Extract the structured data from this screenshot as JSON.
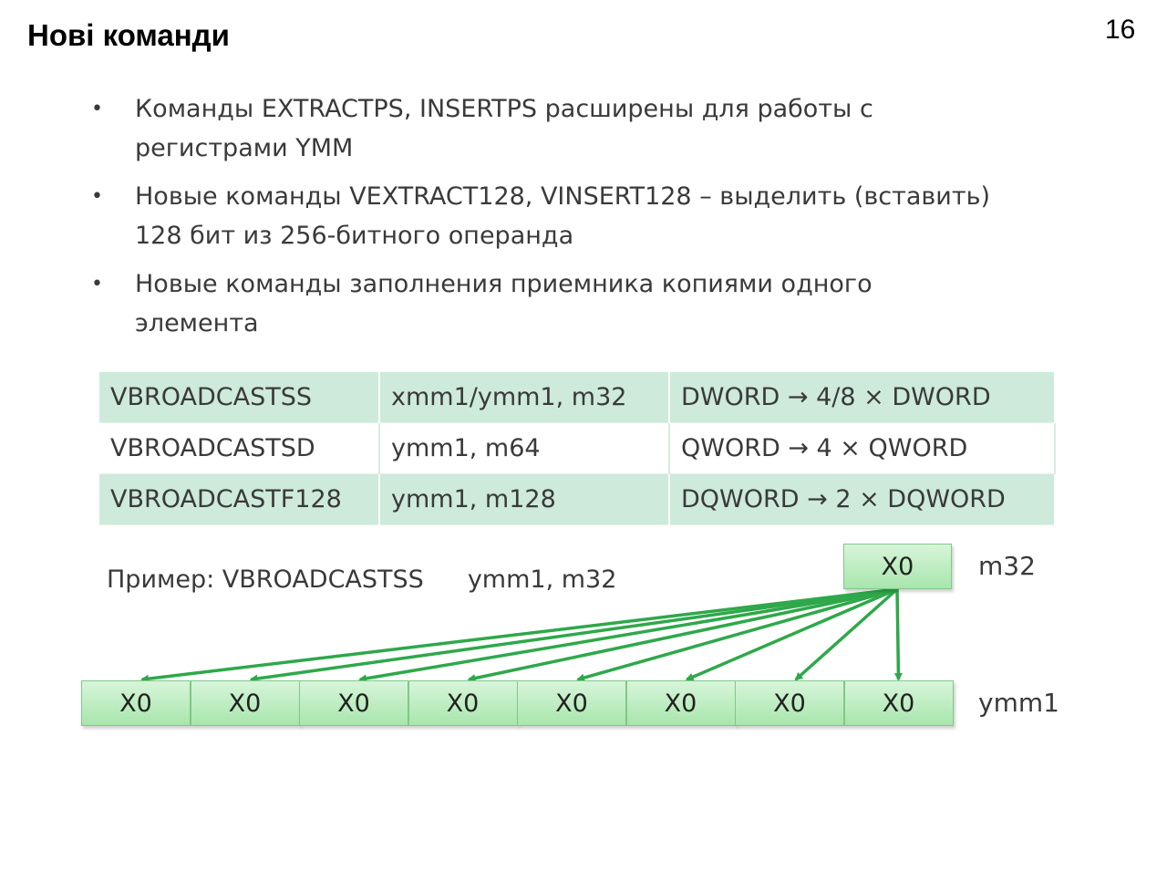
{
  "slide": {
    "title": "Нові команди",
    "page_number": "16"
  },
  "bullets": [
    {
      "marker": "•",
      "text": "Команды EXTRACTPS, INSERTPS расширены для работы с регистрами YMM"
    },
    {
      "marker": "•",
      "text": "Новые команды VEXTRACT128, VINSERT128 – выделить (вставить) 128 бит из 256-битного операнда"
    },
    {
      "marker": "•",
      "text": "Новые команды заполнения приемника копиями одного элемента"
    }
  ],
  "table": {
    "rows": [
      {
        "instruction": "VBROADCASTSS",
        "operands": "xmm1/ymm1, m32",
        "effect": "DWORD → 4/8 × DWORD"
      },
      {
        "instruction": "VBROADCASTSD",
        "operands": "ymm1, m64",
        "effect": "QWORD → 4 × QWORD"
      },
      {
        "instruction": "VBROADCASTF128",
        "operands": "ymm1, m128",
        "effect": "DQWORD → 2 × DQWORD"
      }
    ]
  },
  "example": {
    "label": "Пример: VBROADCASTSS",
    "operands": "ymm1, m32"
  },
  "diagram": {
    "source": {
      "value": "X0",
      "label": "m32"
    },
    "destination": {
      "label": "ymm1",
      "cells": [
        "X0",
        "X0",
        "X0",
        "X0",
        "X0",
        "X0",
        "X0",
        "X0"
      ]
    },
    "colors": {
      "arrow": "#2ea84a",
      "cell_fill": "#b9ecbd",
      "table_shade": "#cdeadb"
    }
  }
}
